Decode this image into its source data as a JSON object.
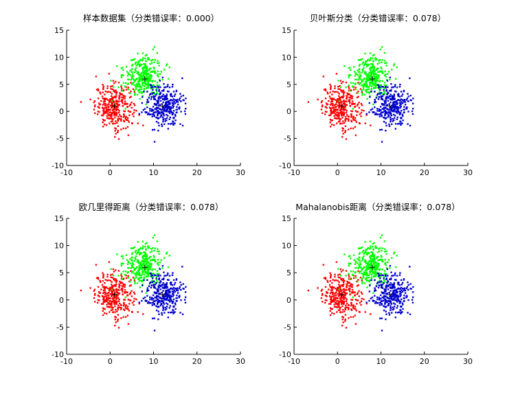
{
  "chart_data": [
    {
      "type": "scatter",
      "title": "样本数据集（分类错误率：0.000）",
      "xlim": [
        -10,
        30
      ],
      "ylim": [
        -10,
        15
      ],
      "xticks": [
        "-10",
        "0",
        "10",
        "20",
        "30"
      ],
      "yticks": [
        "-10",
        "-5",
        "0",
        "5",
        "10",
        "15"
      ],
      "grid": false,
      "centers": [
        {
          "x": 1,
          "y": 1
        },
        {
          "x": 8,
          "y": 6
        },
        {
          "x": 12,
          "y": 1
        }
      ],
      "series": [
        {
          "color": "#ff0000",
          "cluster": {
            "mean": [
              1.0,
              1.0
            ],
            "sd": [
              2.2,
              2.0
            ],
            "n": 330
          }
        },
        {
          "color": "#00ff00",
          "cluster": {
            "mean": [
              7.5,
              6.5
            ],
            "sd": [
              2.2,
              2.0
            ],
            "n": 330
          }
        },
        {
          "color": "#0000cc",
          "cluster": {
            "mean": [
              12.5,
              1.0
            ],
            "sd": [
              2.2,
              2.0
            ],
            "n": 330
          }
        }
      ]
    },
    {
      "type": "scatter",
      "title": "贝叶斯分类（分类错误率：0.078）",
      "xlim": [
        -10,
        30
      ],
      "ylim": [
        -10,
        15
      ],
      "xticks": [
        "-10",
        "0",
        "10",
        "20",
        "30"
      ],
      "yticks": [
        "-10",
        "-5",
        "0",
        "5",
        "10",
        "15"
      ],
      "grid": false,
      "centers": [
        {
          "x": 1,
          "y": 1
        },
        {
          "x": 8,
          "y": 6
        },
        {
          "x": 12,
          "y": 1
        }
      ],
      "series": [
        {
          "color": "#ff0000",
          "cluster": {
            "mean": [
              1.0,
              1.0
            ],
            "sd": [
              2.2,
              2.0
            ],
            "n": 330
          }
        },
        {
          "color": "#00ff00",
          "cluster": {
            "mean": [
              7.5,
              6.5
            ],
            "sd": [
              2.2,
              2.0
            ],
            "n": 330
          }
        },
        {
          "color": "#0000cc",
          "cluster": {
            "mean": [
              12.5,
              1.0
            ],
            "sd": [
              2.2,
              2.0
            ],
            "n": 330
          }
        }
      ]
    },
    {
      "type": "scatter",
      "title": "欧几里得距离（分类错误率：0.078）",
      "xlim": [
        -10,
        30
      ],
      "ylim": [
        -10,
        15
      ],
      "xticks": [
        "-10",
        "0",
        "10",
        "20",
        "30"
      ],
      "yticks": [
        "-10",
        "-5",
        "0",
        "5",
        "10",
        "15"
      ],
      "grid": false,
      "centers": [
        {
          "x": 1,
          "y": 1
        },
        {
          "x": 8,
          "y": 6
        },
        {
          "x": 12,
          "y": 1
        }
      ],
      "series": [
        {
          "color": "#ff0000",
          "cluster": {
            "mean": [
              1.0,
              1.0
            ],
            "sd": [
              2.2,
              2.0
            ],
            "n": 330
          }
        },
        {
          "color": "#00ff00",
          "cluster": {
            "mean": [
              7.5,
              6.5
            ],
            "sd": [
              2.2,
              2.0
            ],
            "n": 330
          }
        },
        {
          "color": "#0000cc",
          "cluster": {
            "mean": [
              12.5,
              1.0
            ],
            "sd": [
              2.2,
              2.0
            ],
            "n": 330
          }
        }
      ]
    },
    {
      "type": "scatter",
      "title": "Mahalanobis距离（分类错误率：0.078）",
      "xlim": [
        -10,
        30
      ],
      "ylim": [
        -10,
        15
      ],
      "xticks": [
        "-10",
        "0",
        "10",
        "20",
        "30"
      ],
      "yticks": [
        "-10",
        "-5",
        "0",
        "5",
        "10",
        "15"
      ],
      "grid": false,
      "centers": [
        {
          "x": 1,
          "y": 1
        },
        {
          "x": 8,
          "y": 6
        },
        {
          "x": 12,
          "y": 1
        }
      ],
      "series": [
        {
          "color": "#ff0000",
          "cluster": {
            "mean": [
              1.0,
              1.0
            ],
            "sd": [
              2.2,
              2.0
            ],
            "n": 330
          }
        },
        {
          "color": "#00ff00",
          "cluster": {
            "mean": [
              7.5,
              6.5
            ],
            "sd": [
              2.2,
              2.0
            ],
            "n": 330
          }
        },
        {
          "color": "#0000cc",
          "cluster": {
            "mean": [
              12.5,
              1.0
            ],
            "sd": [
              2.2,
              2.0
            ],
            "n": 330
          }
        }
      ]
    }
  ]
}
